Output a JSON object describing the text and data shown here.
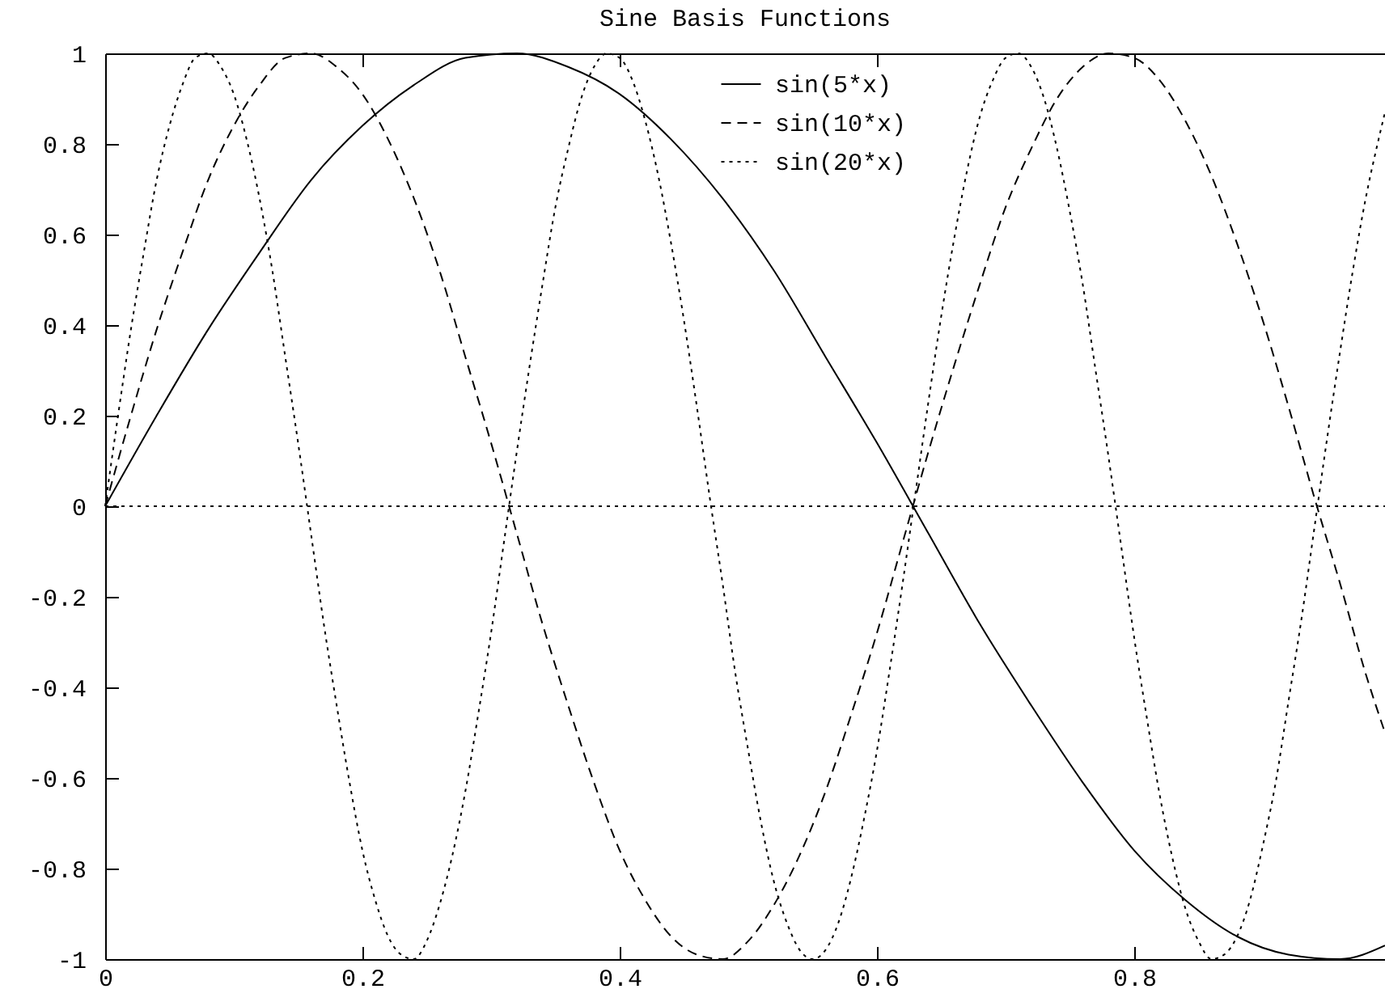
{
  "chart_data": {
    "type": "line",
    "title": "Sine Basis Functions",
    "xlim": [
      0,
      0.995
    ],
    "ylim": [
      -1,
      1
    ],
    "xticks": [
      0,
      0.2,
      0.4,
      0.6,
      0.8
    ],
    "yticks": [
      -1,
      -0.8,
      -0.6,
      -0.4,
      -0.2,
      0,
      0.2,
      0.4,
      0.6,
      0.8,
      1
    ],
    "grid": false,
    "legend": "top",
    "marker": "none",
    "ref_lines": [
      {
        "axis": "y",
        "value": 0,
        "line_style": "dotted",
        "color": "#000000"
      }
    ],
    "series": [
      {
        "name": "sin(5*x)",
        "color": "#000000",
        "line_style": "solid",
        "x": [
          0,
          0.04,
          0.08,
          0.12,
          0.16,
          0.2,
          0.24,
          0.28,
          0.32,
          0.36,
          0.4,
          0.44,
          0.48,
          0.52,
          0.56,
          0.6,
          0.64,
          0.68,
          0.72,
          0.76,
          0.8,
          0.84,
          0.88,
          0.92,
          0.96,
          0.995
        ],
        "values": [
          0,
          0.2,
          0.39,
          0.56,
          0.72,
          0.84,
          0.93,
          0.99,
          1.0,
          0.97,
          0.91,
          0.81,
          0.68,
          0.52,
          0.33,
          0.14,
          -0.06,
          -0.26,
          -0.44,
          -0.61,
          -0.76,
          -0.87,
          -0.95,
          -0.99,
          -1.0,
          -0.97
        ]
      },
      {
        "name": "sin(10*x)",
        "color": "#000000",
        "line_style": "dashed",
        "x": [
          0,
          0.02,
          0.04,
          0.06,
          0.08,
          0.1,
          0.12,
          0.14,
          0.16,
          0.18,
          0.2,
          0.22,
          0.24,
          0.26,
          0.28,
          0.3,
          0.32,
          0.34,
          0.36,
          0.38,
          0.4,
          0.42,
          0.44,
          0.46,
          0.48,
          0.5,
          0.52,
          0.54,
          0.56,
          0.58,
          0.6,
          0.62,
          0.64,
          0.66,
          0.68,
          0.7,
          0.72,
          0.74,
          0.76,
          0.78,
          0.8,
          0.82,
          0.84,
          0.86,
          0.88,
          0.9,
          0.92,
          0.94,
          0.96,
          0.98,
          0.995
        ],
        "values": [
          0,
          0.2,
          0.39,
          0.56,
          0.72,
          0.84,
          0.93,
          0.99,
          1.0,
          0.97,
          0.91,
          0.81,
          0.68,
          0.52,
          0.33,
          0.14,
          -0.06,
          -0.26,
          -0.44,
          -0.61,
          -0.76,
          -0.87,
          -0.95,
          -0.99,
          -1.0,
          -0.96,
          -0.88,
          -0.77,
          -0.63,
          -0.46,
          -0.28,
          -0.08,
          0.12,
          0.31,
          0.49,
          0.66,
          0.79,
          0.9,
          0.97,
          1.0,
          0.99,
          0.94,
          0.85,
          0.73,
          0.58,
          0.41,
          0.22,
          0.02,
          -0.17,
          -0.37,
          -0.5
        ]
      },
      {
        "name": "sin(20*x)",
        "color": "#000000",
        "line_style": "dotted",
        "x": [
          0,
          0.01,
          0.02,
          0.03,
          0.04,
          0.05,
          0.06,
          0.07,
          0.08,
          0.09,
          0.1,
          0.11,
          0.12,
          0.13,
          0.14,
          0.15,
          0.16,
          0.17,
          0.18,
          0.19,
          0.2,
          0.21,
          0.22,
          0.23,
          0.24,
          0.25,
          0.26,
          0.27,
          0.28,
          0.29,
          0.3,
          0.31,
          0.32,
          0.33,
          0.34,
          0.35,
          0.36,
          0.37,
          0.38,
          0.39,
          0.4,
          0.41,
          0.42,
          0.43,
          0.44,
          0.45,
          0.46,
          0.47,
          0.48,
          0.49,
          0.5,
          0.51,
          0.52,
          0.53,
          0.54,
          0.55,
          0.56,
          0.57,
          0.58,
          0.59,
          0.6,
          0.61,
          0.62,
          0.63,
          0.64,
          0.65,
          0.66,
          0.67,
          0.68,
          0.69,
          0.7,
          0.71,
          0.72,
          0.73,
          0.74,
          0.75,
          0.76,
          0.77,
          0.78,
          0.79,
          0.8,
          0.81,
          0.82,
          0.83,
          0.84,
          0.85,
          0.86,
          0.87,
          0.88,
          0.89,
          0.9,
          0.91,
          0.92,
          0.93,
          0.94,
          0.95,
          0.96,
          0.97,
          0.98,
          0.99,
          0.995
        ],
        "values": [
          0,
          0.2,
          0.39,
          0.56,
          0.72,
          0.84,
          0.93,
          0.99,
          1.0,
          0.97,
          0.91,
          0.81,
          0.68,
          0.52,
          0.33,
          0.14,
          -0.06,
          -0.26,
          -0.44,
          -0.61,
          -0.76,
          -0.87,
          -0.95,
          -0.99,
          -1.0,
          -0.96,
          -0.88,
          -0.77,
          -0.63,
          -0.46,
          -0.28,
          -0.08,
          0.12,
          0.31,
          0.49,
          0.66,
          0.79,
          0.9,
          0.97,
          1.0,
          0.99,
          0.94,
          0.85,
          0.73,
          0.58,
          0.41,
          0.22,
          0.02,
          -0.17,
          -0.37,
          -0.54,
          -0.7,
          -0.83,
          -0.92,
          -0.98,
          -1.0,
          -0.98,
          -0.92,
          -0.82,
          -0.69,
          -0.54,
          -0.36,
          -0.17,
          0.03,
          0.23,
          0.42,
          0.59,
          0.74,
          0.86,
          0.94,
          0.99,
          1.0,
          0.97,
          0.9,
          0.79,
          0.65,
          0.49,
          0.3,
          0.11,
          -0.09,
          -0.29,
          -0.47,
          -0.64,
          -0.78,
          -0.89,
          -0.96,
          -1.0,
          -0.99,
          -0.95,
          -0.87,
          -0.75,
          -0.61,
          -0.43,
          -0.25,
          -0.05,
          0.15,
          0.34,
          0.52,
          0.68,
          0.81,
          0.87
        ]
      }
    ]
  }
}
